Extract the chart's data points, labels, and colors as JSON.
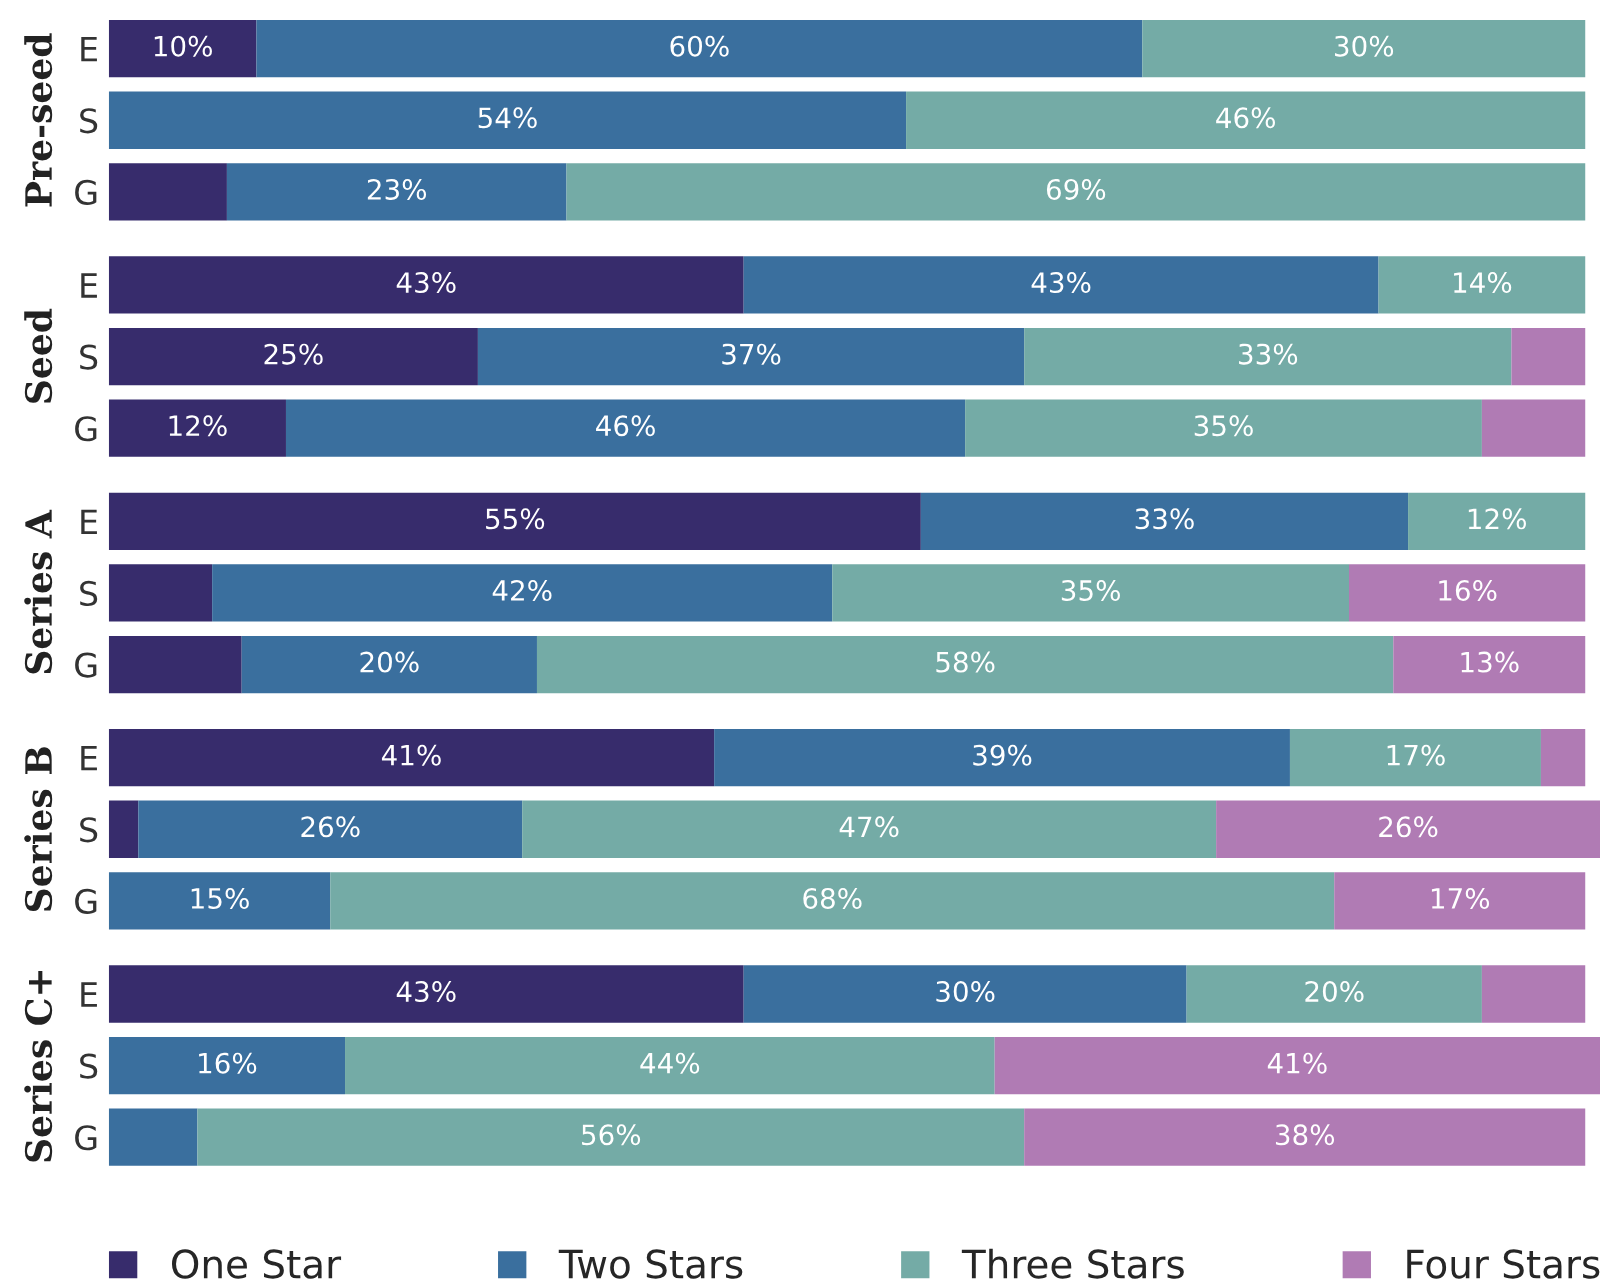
{
  "chart_data": {
    "type": "bar",
    "orientation": "horizontal",
    "stacked": true,
    "legend": "bottom",
    "categories": [
      "E",
      "S",
      "G",
      "E",
      "S",
      "G",
      "E",
      "S",
      "G",
      "E",
      "S",
      "G",
      "E",
      "S",
      "G"
    ],
    "annotations": [
      "Pre-seed",
      "Seed",
      "Series A",
      "Series B",
      "Series C+"
    ],
    "series": [
      {
        "name": "One Star",
        "color": "#372c6c",
        "values": [
          10,
          null,
          8,
          43,
          25,
          12,
          55,
          7,
          9,
          41,
          2,
          null,
          43,
          null,
          null
        ],
        "value_labels": [
          "10%",
          null,
          null,
          "43%",
          "25%",
          "12%",
          "55%",
          null,
          null,
          "41%",
          null,
          null,
          "43%",
          null,
          null
        ]
      },
      {
        "name": "Two Stars",
        "color": "#3a6f9e",
        "values": [
          60,
          54,
          23,
          43,
          37,
          46,
          33,
          42,
          20,
          39,
          26,
          15,
          30,
          16,
          6
        ],
        "value_labels": [
          "60%",
          "54%",
          "23%",
          "43%",
          "37%",
          "46%",
          "33%",
          "42%",
          "20%",
          "39%",
          "26%",
          "15%",
          "30%",
          "16%",
          null
        ]
      },
      {
        "name": "Three Stars",
        "color": "#74aba6",
        "values": [
          30,
          46,
          69,
          14,
          33,
          35,
          12,
          35,
          58,
          17,
          47,
          68,
          20,
          44,
          56
        ],
        "value_labels": [
          "30%",
          "46%",
          "69%",
          "14%",
          "33%",
          "35%",
          "12%",
          "35%",
          "58%",
          "17%",
          "47%",
          "68%",
          "20%",
          "44%",
          "56%"
        ]
      },
      {
        "name": "Four Stars",
        "color": "#b07bb4",
        "values": [
          null,
          null,
          null,
          null,
          5,
          7,
          null,
          16,
          13,
          3,
          26,
          17,
          7,
          41,
          38
        ],
        "value_labels": [
          null,
          null,
          null,
          null,
          null,
          null,
          null,
          "16%",
          "13%",
          null,
          "26%",
          "17%",
          null,
          "41%",
          "38%"
        ]
      }
    ]
  }
}
